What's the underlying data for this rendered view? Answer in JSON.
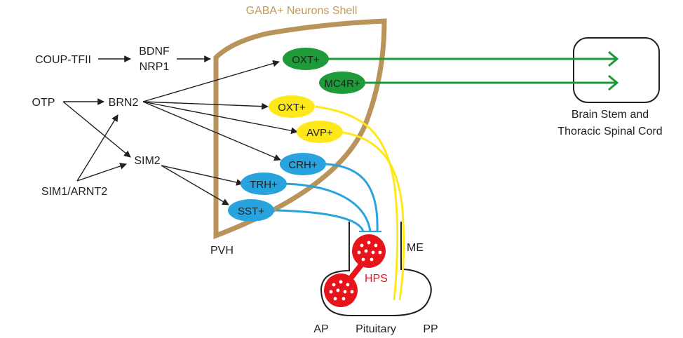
{
  "title": "GABA+ Neurons Shell",
  "regions": {
    "pvh": "PVH",
    "me": "ME",
    "ap": "AP",
    "pituitary": "Pituitary",
    "pp": "PP",
    "hps": "HPS"
  },
  "factors": {
    "coup_tfii": "COUP-TFII",
    "bdnf": "BDNF",
    "nrp1": "NRP1",
    "otp": "OTP",
    "brn2": "BRN2",
    "sim2": "SIM2",
    "sim1_arnt2": "SIM1/ARNT2"
  },
  "neurons": {
    "oxt_green": "OXT+",
    "mc4r": "MC4R+",
    "oxt_yellow": "OXT+",
    "avp": "AVP+",
    "crh": "CRH+",
    "trh": "TRH+",
    "sst": "SST+"
  },
  "target": {
    "line1": "Brain Stem and",
    "line2": "Thoracic Spinal Cord"
  },
  "colors": {
    "shell": "#b8935a",
    "green": "#1f9a3a",
    "yellow": "#ffe81a",
    "blue": "#29a3dd",
    "red": "#e8141c",
    "arrow": "#231f20"
  }
}
